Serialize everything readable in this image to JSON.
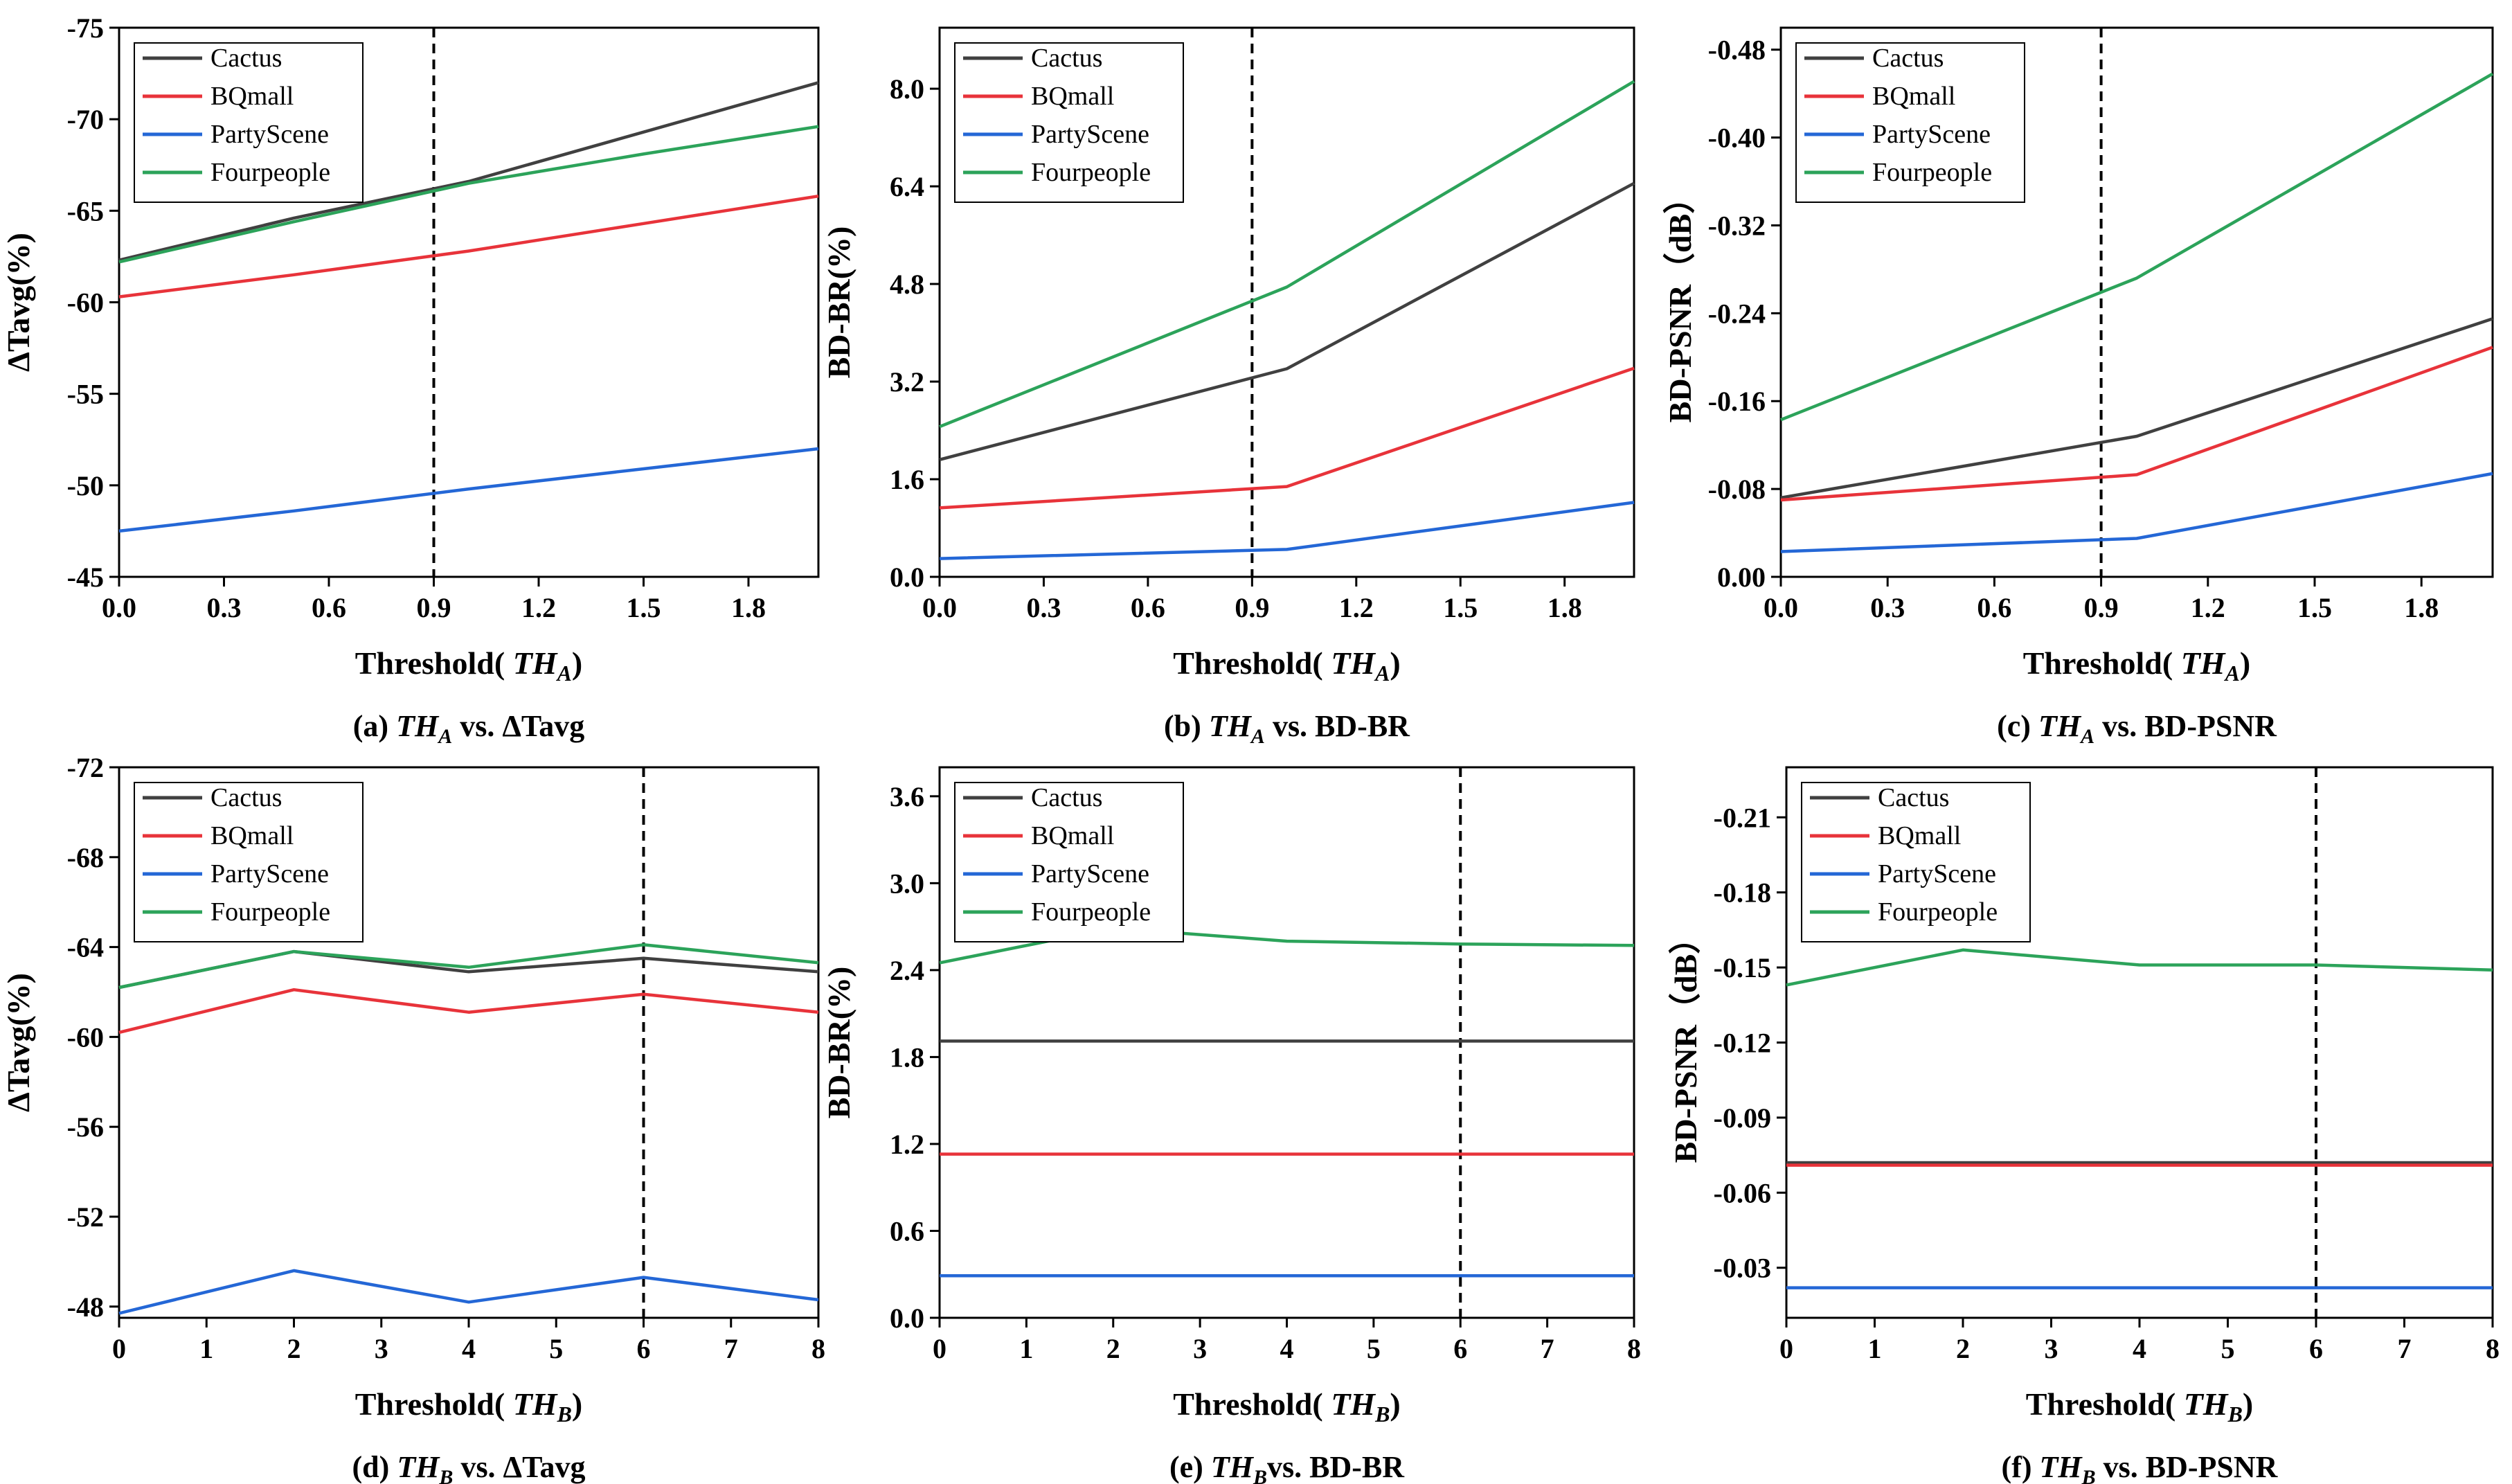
{
  "figure": {
    "colors": {
      "Cactus": "#404040",
      "BQmall": "#e8333a",
      "PartyScene": "#2467d6",
      "Fourpeople": "#2ca35a"
    }
  },
  "chart_data": [
    {
      "id": "a",
      "type": "line",
      "caption": {
        "prefix": "(a) ",
        "var": "TH",
        "sub": "A",
        "suffix": " vs. ΔTavg"
      },
      "xlabel": {
        "prefix": "Threshold( ",
        "var": "TH",
        "sub": "A",
        "suffix": ")"
      },
      "ylabel": "ΔTavg(%)",
      "xlim": [
        0,
        2.0
      ],
      "ylim": [
        -45,
        -75
      ],
      "xticks": [
        "0.0",
        "0.3",
        "0.6",
        "0.9",
        "1.2",
        "1.5",
        "1.8"
      ],
      "xtick_values": [
        0,
        0.3,
        0.6,
        0.9,
        1.2,
        1.5,
        1.8
      ],
      "yticks": [
        "-45",
        "-50",
        "-55",
        "-60",
        "-65",
        "-70",
        "-75"
      ],
      "ytick_values": [
        -45,
        -50,
        -55,
        -60,
        -65,
        -70,
        -75
      ],
      "dashed_x": 0.9,
      "x": [
        0,
        0.5,
        1.0,
        1.5,
        2.0
      ],
      "series": [
        {
          "name": "Cactus",
          "values": [
            -62.3,
            -64.6,
            -66.6,
            -69.3,
            -72.0
          ]
        },
        {
          "name": "BQmall",
          "values": [
            -60.3,
            -61.5,
            -62.8,
            -64.3,
            -65.8
          ]
        },
        {
          "name": "PartyScene",
          "values": [
            -47.5,
            -48.6,
            -49.8,
            -50.9,
            -52.0
          ]
        },
        {
          "name": "Fourpeople",
          "values": [
            -62.2,
            -64.4,
            -66.5,
            -68.1,
            -69.6
          ]
        }
      ],
      "legend": {
        "names": [
          "Cactus",
          "BQmall",
          "PartyScene",
          "Fourpeople"
        ],
        "position": "top-left"
      }
    },
    {
      "id": "b",
      "type": "line",
      "caption": {
        "prefix": "(b) ",
        "var": "TH",
        "sub": "A",
        "suffix": " vs. BD-BR"
      },
      "xlabel": {
        "prefix": "Threshold( ",
        "var": "TH",
        "sub": "A",
        "suffix": ")"
      },
      "ylabel": "BD-BR(%)",
      "xlim": [
        0,
        2.0
      ],
      "ylim": [
        0,
        9.0
      ],
      "xticks": [
        "0.0",
        "0.3",
        "0.6",
        "0.9",
        "1.2",
        "1.5",
        "1.8"
      ],
      "xtick_values": [
        0,
        0.3,
        0.6,
        0.9,
        1.2,
        1.5,
        1.8
      ],
      "yticks": [
        "0.0",
        "1.6",
        "3.2",
        "4.8",
        "6.4",
        "8.0"
      ],
      "ytick_values": [
        0,
        1.6,
        3.2,
        4.8,
        6.4,
        8.0
      ],
      "dashed_x": 0.9,
      "x": [
        0,
        1.0,
        2.0
      ],
      "series": [
        {
          "name": "Cactus",
          "values": [
            1.92,
            3.41,
            6.45
          ]
        },
        {
          "name": "BQmall",
          "values": [
            1.13,
            1.48,
            3.42
          ]
        },
        {
          "name": "PartyScene",
          "values": [
            0.3,
            0.45,
            1.22
          ]
        },
        {
          "name": "Fourpeople",
          "values": [
            2.46,
            4.75,
            8.12
          ]
        }
      ],
      "legend": {
        "names": [
          "Cactus",
          "BQmall",
          "PartyScene",
          "Fourpeople"
        ],
        "position": "top-left"
      }
    },
    {
      "id": "c",
      "type": "line",
      "caption": {
        "prefix": "(c) ",
        "var": "TH",
        "sub": "A",
        "suffix": " vs. BD-PSNR"
      },
      "xlabel": {
        "prefix": "Threshold( ",
        "var": "TH",
        "sub": "A",
        "suffix": ")"
      },
      "ylabel": "BD-PSNR（dB）",
      "xlim": [
        0,
        2.0
      ],
      "ylim": [
        0,
        -0.5
      ],
      "xticks": [
        "0.0",
        "0.3",
        "0.6",
        "0.9",
        "1.2",
        "1.5",
        "1.8"
      ],
      "xtick_values": [
        0,
        0.3,
        0.6,
        0.9,
        1.2,
        1.5,
        1.8
      ],
      "yticks": [
        "0.00",
        "-0.08",
        "-0.16",
        "-0.24",
        "-0.32",
        "-0.40",
        "-0.48"
      ],
      "ytick_values": [
        0,
        -0.08,
        -0.16,
        -0.24,
        -0.32,
        -0.4,
        -0.48
      ],
      "dashed_x": 0.9,
      "x": [
        0,
        1.0,
        2.0
      ],
      "series": [
        {
          "name": "Cactus",
          "values": [
            -0.072,
            -0.128,
            -0.235
          ]
        },
        {
          "name": "BQmall",
          "values": [
            -0.07,
            -0.093,
            -0.209
          ]
        },
        {
          "name": "PartyScene",
          "values": [
            -0.023,
            -0.035,
            -0.094
          ]
        },
        {
          "name": "Fourpeople",
          "values": [
            -0.143,
            -0.272,
            -0.458
          ]
        }
      ],
      "legend": {
        "names": [
          "Cactus",
          "BQmall",
          "PartyScene",
          "Fourpeople"
        ],
        "position": "top-left"
      }
    },
    {
      "id": "d",
      "type": "line",
      "caption": {
        "prefix": "(d) ",
        "var": "TH",
        "sub": "B",
        "suffix": " vs. ΔTavg"
      },
      "xlabel": {
        "prefix": "Threshold( ",
        "var": "TH",
        "sub": "B",
        "suffix": ")"
      },
      "ylabel": "ΔTavg(%)",
      "xlim": [
        0,
        8
      ],
      "ylim": [
        -47.5,
        -72
      ],
      "xticks": [
        "0",
        "1",
        "2",
        "3",
        "4",
        "5",
        "6",
        "7",
        "8"
      ],
      "xtick_values": [
        0,
        1,
        2,
        3,
        4,
        5,
        6,
        7,
        8
      ],
      "yticks": [
        "-48",
        "-52",
        "-56",
        "-60",
        "-64",
        "-68",
        "-72"
      ],
      "ytick_values": [
        -48,
        -52,
        -56,
        -60,
        -64,
        -68,
        -72
      ],
      "dashed_x": 6,
      "x": [
        0,
        2,
        4,
        6,
        8
      ],
      "series": [
        {
          "name": "Cactus",
          "values": [
            -62.2,
            -63.8,
            -62.9,
            -63.5,
            -62.9
          ]
        },
        {
          "name": "BQmall",
          "values": [
            -60.2,
            -62.1,
            -61.1,
            -61.9,
            -61.1
          ]
        },
        {
          "name": "PartyScene",
          "values": [
            -47.7,
            -49.6,
            -48.2,
            -49.3,
            -48.3
          ]
        },
        {
          "name": "Fourpeople",
          "values": [
            -62.2,
            -63.8,
            -63.1,
            -64.1,
            -63.3
          ]
        }
      ],
      "legend": {
        "names": [
          "Cactus",
          "BQmall",
          "PartyScene",
          "Fourpeople"
        ],
        "position": "top-left"
      }
    },
    {
      "id": "e",
      "type": "line",
      "caption": {
        "prefix": "(e) ",
        "var": "TH",
        "sub": "B",
        "suffix": "vs. BD-BR"
      },
      "xlabel": {
        "prefix": "Threshold( ",
        "var": "TH",
        "sub": "B",
        "suffix": ")"
      },
      "ylabel": "BD-BR(%)",
      "xlim": [
        0,
        8
      ],
      "ylim": [
        0,
        3.8
      ],
      "xticks": [
        "0",
        "1",
        "2",
        "3",
        "4",
        "5",
        "6",
        "7",
        "8"
      ],
      "xtick_values": [
        0,
        1,
        2,
        3,
        4,
        5,
        6,
        7,
        8
      ],
      "yticks": [
        "0.0",
        "0.6",
        "1.2",
        "1.8",
        "2.4",
        "3.0",
        "3.6"
      ],
      "ytick_values": [
        0,
        0.6,
        1.2,
        1.8,
        2.4,
        3.0,
        3.6
      ],
      "dashed_x": 6,
      "x": [
        0,
        2,
        4,
        6,
        8
      ],
      "series": [
        {
          "name": "Cactus",
          "values": [
            1.91,
            1.91,
            1.91,
            1.91,
            1.91
          ]
        },
        {
          "name": "BQmall",
          "values": [
            1.13,
            1.13,
            1.13,
            1.13,
            1.13
          ]
        },
        {
          "name": "PartyScene",
          "values": [
            0.29,
            0.29,
            0.29,
            0.29,
            0.29
          ]
        },
        {
          "name": "Fourpeople",
          "values": [
            2.45,
            2.69,
            2.6,
            2.58,
            2.57
          ]
        }
      ],
      "legend": {
        "names": [
          "Cactus",
          "BQmall",
          "PartyScene",
          "Fourpeople"
        ],
        "position": "top-left"
      }
    },
    {
      "id": "f",
      "type": "line",
      "caption": {
        "prefix": "(f) ",
        "var": "TH",
        "sub": "B",
        "suffix": " vs. BD-PSNR"
      },
      "xlabel": {
        "prefix": "Threshold( ",
        "var": "TH",
        "sub": "B",
        "suffix": ")"
      },
      "ylabel": "BD-PSNR（dB）",
      "xlim": [
        0,
        8
      ],
      "ylim": [
        -0.01,
        -0.23
      ],
      "xticks": [
        "0",
        "1",
        "2",
        "3",
        "4",
        "5",
        "6",
        "7",
        "8"
      ],
      "xtick_values": [
        0,
        1,
        2,
        3,
        4,
        5,
        6,
        7,
        8
      ],
      "yticks": [
        "-0.03",
        "-0.06",
        "-0.09",
        "-0.12",
        "-0.15",
        "-0.18",
        "-0.21"
      ],
      "ytick_values": [
        -0.03,
        -0.06,
        -0.09,
        -0.12,
        -0.15,
        -0.18,
        -0.21
      ],
      "dashed_x": 6,
      "x": [
        0,
        2,
        4,
        6,
        8
      ],
      "series": [
        {
          "name": "Cactus",
          "values": [
            -0.072,
            -0.072,
            -0.072,
            -0.072,
            -0.072
          ]
        },
        {
          "name": "BQmall",
          "values": [
            -0.071,
            -0.071,
            -0.071,
            -0.071,
            -0.071
          ]
        },
        {
          "name": "PartyScene",
          "values": [
            -0.022,
            -0.022,
            -0.022,
            -0.022,
            -0.022
          ]
        },
        {
          "name": "Fourpeople",
          "values": [
            -0.143,
            -0.157,
            -0.151,
            -0.151,
            -0.149
          ]
        }
      ],
      "legend": {
        "names": [
          "Cactus",
          "BQmall",
          "PartyScene",
          "Fourpeople"
        ],
        "position": "top-left"
      }
    }
  ]
}
